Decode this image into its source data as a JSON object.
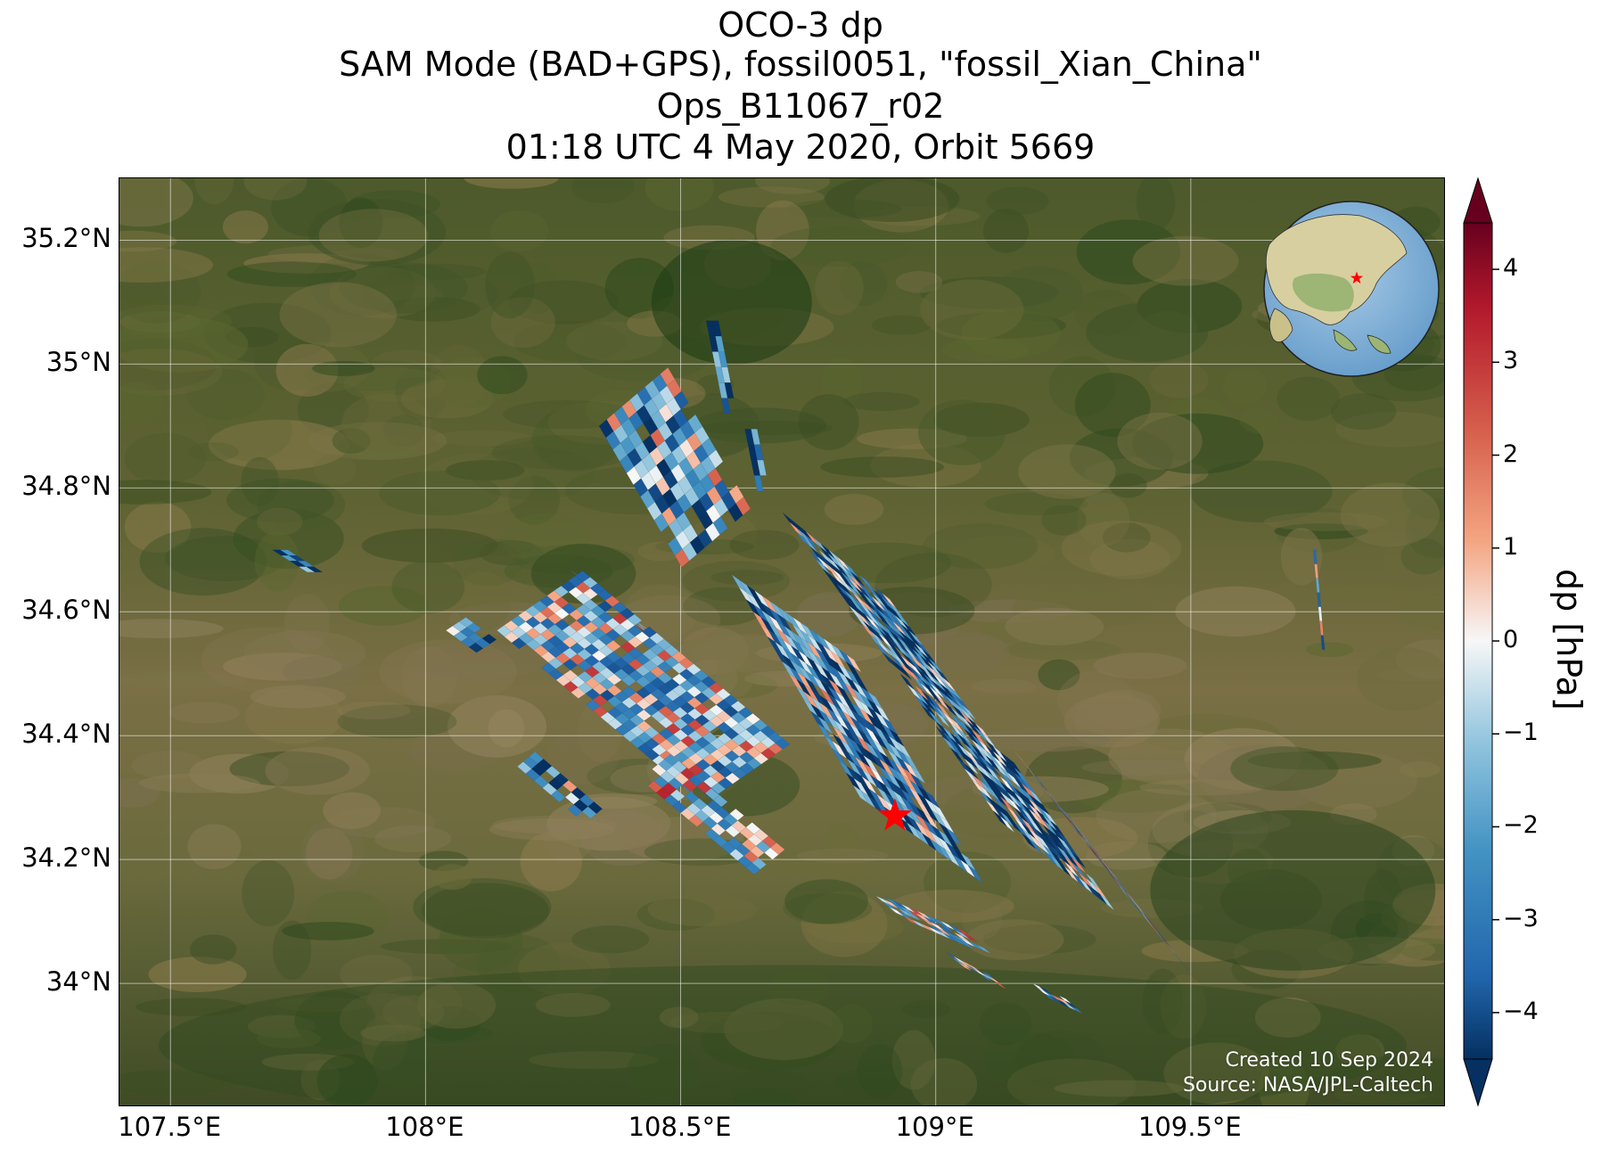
{
  "title": {
    "line1": "OCO-3 dp",
    "line2": "SAM Mode (BAD+GPS), fossil0051, \"fossil_Xian_China\"",
    "line3": "Ops_B11067_r02",
    "line4": "01:18 UTC 4 May 2020, Orbit 5669"
  },
  "map": {
    "extent": {
      "lon_min": 107.4,
      "lon_max": 110.0,
      "lat_min": 33.8,
      "lat_max": 35.3
    },
    "lat_ticks": [
      {
        "value": 35.2,
        "label": "35.2°N"
      },
      {
        "value": 35.0,
        "label": "35°N"
      },
      {
        "value": 34.8,
        "label": "34.8°N"
      },
      {
        "value": 34.6,
        "label": "34.6°N"
      },
      {
        "value": 34.4,
        "label": "34.4°N"
      },
      {
        "value": 34.2,
        "label": "34.2°N"
      },
      {
        "value": 34.0,
        "label": "34°N"
      }
    ],
    "lon_ticks": [
      {
        "value": 107.5,
        "label": "107.5°E"
      },
      {
        "value": 108.0,
        "label": "108°E"
      },
      {
        "value": 108.5,
        "label": "108.5°E"
      },
      {
        "value": 109.0,
        "label": "109°E"
      },
      {
        "value": 109.5,
        "label": "109.5°E"
      }
    ],
    "target": {
      "lon": 108.92,
      "lat": 34.27,
      "marker": "star-icon",
      "color": "#ff0000"
    },
    "gridlines": true,
    "basemap": "satellite-imagery",
    "inset": "globe-locator-east-asia"
  },
  "colorbar": {
    "title": "dp [hPa]",
    "range": [
      -4.5,
      4.5
    ],
    "extend": "both",
    "cmap": "RdBu_r",
    "ticks": [
      {
        "value": 4,
        "label": "4"
      },
      {
        "value": 3,
        "label": "3"
      },
      {
        "value": 2,
        "label": "2"
      },
      {
        "value": 1,
        "label": "1"
      },
      {
        "value": 0,
        "label": "0"
      },
      {
        "value": -1,
        "label": "−1"
      },
      {
        "value": -2,
        "label": "−2"
      },
      {
        "value": -3,
        "label": "−3"
      },
      {
        "value": -4,
        "label": "−4"
      }
    ]
  },
  "credits": {
    "created": "Created 10 Sep 2024",
    "source": "Source: NASA/JPL-Caltech"
  }
}
